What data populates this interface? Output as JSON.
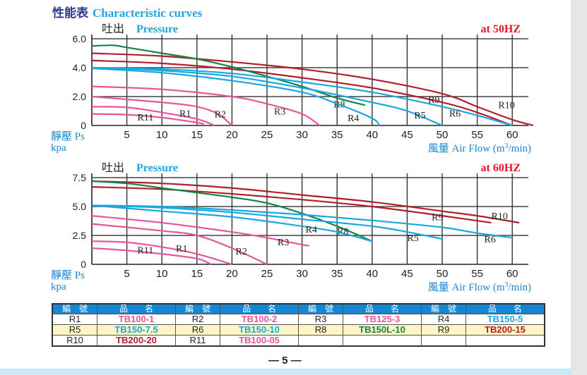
{
  "header": {
    "title_cn": "性能表",
    "title_en": "Characteristic curves"
  },
  "colors": {
    "pink": "#e8559c",
    "blue": "#19a7e0",
    "green": "#12834a",
    "red": "#b21f2a",
    "header_blue": "#1586d2",
    "title_blue": "#1fa6e0",
    "title_navy": "#2b3a8f",
    "hz_red": "#e3182d"
  },
  "chart_data": [
    {
      "type": "line",
      "title": "at 50HZ",
      "ylabel_top": "吐出 Pressure",
      "ylabel_cn": "靜壓 Ps",
      "yunit": "kpa",
      "xlabel": "風量 Air Flow (m3/min)",
      "xlabel_cn": "風量",
      "xlabel_en": "Air Flow (m",
      "xlabel_sup": "3",
      "xlabel_end": "/min)",
      "xlim": [
        0,
        64
      ],
      "ylim": [
        0,
        6.0
      ],
      "x_ticks": [
        "5",
        "10",
        "15",
        "20",
        "25",
        "30",
        "35",
        "40",
        "45",
        "50",
        "55",
        "60"
      ],
      "y_ticks": [
        "0",
        "2.0",
        "4.0",
        "6.0"
      ],
      "grid": true,
      "series": [
        {
          "name": "R10",
          "color": "red",
          "points": [
            [
              0,
              5.0
            ],
            [
              10,
              4.8
            ],
            [
              20,
              4.4
            ],
            [
              30,
              3.9
            ],
            [
              40,
              3.2
            ],
            [
              50,
              2.2
            ],
            [
              55,
              1.3
            ],
            [
              60,
              0.4
            ],
            [
              63,
              0
            ]
          ],
          "label_at": [
            58,
            1.2
          ]
        },
        {
          "name": "R9",
          "color": "red",
          "points": [
            [
              0,
              4.5
            ],
            [
              10,
              4.3
            ],
            [
              20,
              3.9
            ],
            [
              30,
              3.3
            ],
            [
              40,
              2.6
            ],
            [
              50,
              1.6
            ],
            [
              55,
              0.9
            ],
            [
              60,
              0
            ]
          ],
          "label_at": [
            48,
            1.55
          ]
        },
        {
          "name": "R8",
          "color": "green",
          "points": [
            [
              0,
              5.5
            ],
            [
              3,
              5.55
            ],
            [
              5,
              5.4
            ],
            [
              10,
              5.0
            ],
            [
              15,
              4.6
            ],
            [
              20,
              4.05
            ],
            [
              25,
              3.4
            ],
            [
              30,
              2.7
            ],
            [
              35,
              1.9
            ],
            [
              39,
              1.4
            ]
          ],
          "label_at": [
            34.5,
            1.25
          ]
        },
        {
          "name": "R6",
          "color": "blue",
          "points": [
            [
              0,
              4.0
            ],
            [
              10,
              3.9
            ],
            [
              20,
              3.6
            ],
            [
              30,
              3.0
            ],
            [
              40,
              2.3
            ],
            [
              50,
              1.3
            ],
            [
              55,
              0.7
            ],
            [
              60,
              0
            ]
          ],
          "label_at": [
            51,
            0.6
          ]
        },
        {
          "name": "R5",
          "color": "blue",
          "points": [
            [
              0,
              4.0
            ],
            [
              10,
              3.8
            ],
            [
              20,
              3.4
            ],
            [
              30,
              2.6
            ],
            [
              40,
              1.6
            ],
            [
              45,
              1.0
            ],
            [
              50,
              0
            ]
          ],
          "label_at": [
            46,
            0.5
          ]
        },
        {
          "name": "R4",
          "color": "blue",
          "points": [
            [
              0,
              3.95
            ],
            [
              10,
              3.65
            ],
            [
              20,
              3.1
            ],
            [
              30,
              2.3
            ],
            [
              35,
              1.5
            ],
            [
              40,
              0.5
            ],
            [
              41,
              0
            ]
          ],
          "label_at": [
            36.5,
            0.3
          ]
        },
        {
          "name": "R3",
          "color": "pink",
          "points": [
            [
              0,
              2.7
            ],
            [
              10,
              2.5
            ],
            [
              20,
              2.0
            ],
            [
              25,
              1.5
            ],
            [
              30,
              0.8
            ],
            [
              32.5,
              0
            ]
          ],
          "label_at": [
            26,
            0.75
          ]
        },
        {
          "name": "R2",
          "color": "pink",
          "points": [
            [
              0,
              2.0
            ],
            [
              10,
              1.6
            ],
            [
              15,
              1.3
            ],
            [
              18,
              0.8
            ],
            [
              20,
              0
            ]
          ],
          "label_at": [
            17.5,
            0.55
          ]
        },
        {
          "name": "R1",
          "color": "pink",
          "points": [
            [
              0,
              1.3
            ],
            [
              5,
              1.25
            ],
            [
              10,
              0.9
            ],
            [
              15,
              0.45
            ],
            [
              17.5,
              0
            ]
          ],
          "label_at": [
            12.5,
            0.6
          ]
        },
        {
          "name": "R11",
          "color": "pink",
          "points": [
            [
              0,
              0.8
            ],
            [
              5,
              0.75
            ],
            [
              10,
              0.55
            ],
            [
              15,
              0.2
            ],
            [
              16,
              0.1
            ]
          ],
          "label_at": [
            6.5,
            0.35
          ]
        }
      ]
    },
    {
      "type": "line",
      "title": "at 60HZ",
      "ylabel_top": "吐出 Pressure",
      "ylabel_cn": "靜壓 Ps",
      "yunit": "kpa",
      "xlabel": "風量 Air Flow (m3/min)",
      "xlabel_cn": "風量",
      "xlabel_en": "Air Flow (m",
      "xlabel_sup": "3",
      "xlabel_end": "/min)",
      "xlim": [
        0,
        64
      ],
      "ylim": [
        0,
        7.5
      ],
      "x_ticks": [
        "5",
        "10",
        "15",
        "20",
        "25",
        "30",
        "35",
        "40",
        "45",
        "50",
        "55",
        "60"
      ],
      "y_ticks": [
        "0",
        "2.5",
        "5.0",
        "7.5"
      ],
      "grid": true,
      "series": [
        {
          "name": "R10",
          "color": "red",
          "points": [
            [
              0,
              7.2
            ],
            [
              10,
              7.0
            ],
            [
              20,
              6.6
            ],
            [
              30,
              6.0
            ],
            [
              40,
              5.4
            ],
            [
              50,
              4.6
            ],
            [
              55,
              4.2
            ],
            [
              61,
              3.6
            ]
          ],
          "label_at": [
            57,
            3.9
          ]
        },
        {
          "name": "R9",
          "color": "red",
          "points": [
            [
              0,
              6.7
            ],
            [
              10,
              6.5
            ],
            [
              20,
              6.1
            ],
            [
              30,
              5.6
            ],
            [
              40,
              5.0
            ],
            [
              50,
              4.2
            ],
            [
              57,
              3.6
            ]
          ],
          "label_at": [
            48.5,
            3.8
          ]
        },
        {
          "name": "R8",
          "color": "green",
          "points": [
            [
              0,
              7.2
            ],
            [
              5,
              7.0
            ],
            [
              10,
              6.6
            ],
            [
              15,
              6.2
            ],
            [
              20,
              5.8
            ],
            [
              25,
              5.3
            ],
            [
              30,
              4.4
            ],
            [
              35,
              3.3
            ],
            [
              40,
              2.0
            ]
          ],
          "label_at": [
            35,
            2.6
          ]
        },
        {
          "name": "R6",
          "color": "blue",
          "points": [
            [
              0,
              5.1
            ],
            [
              10,
              5.0
            ],
            [
              20,
              4.7
            ],
            [
              30,
              4.3
            ],
            [
              40,
              3.8
            ],
            [
              50,
              3.2
            ],
            [
              55,
              2.7
            ],
            [
              60,
              2.3
            ]
          ],
          "label_at": [
            56,
            1.9
          ]
        },
        {
          "name": "R5",
          "color": "blue",
          "points": [
            [
              0,
              5.1
            ],
            [
              10,
              4.9
            ],
            [
              20,
              4.5
            ],
            [
              30,
              3.9
            ],
            [
              40,
              3.3
            ],
            [
              45,
              2.8
            ],
            [
              50,
              2.2
            ]
          ],
          "label_at": [
            45,
            2.0
          ]
        },
        {
          "name": "R4",
          "color": "blue",
          "points": [
            [
              0,
              5.1
            ],
            [
              10,
              4.6
            ],
            [
              20,
              4.1
            ],
            [
              30,
              3.3
            ],
            [
              35,
              2.8
            ],
            [
              40,
              2.0
            ]
          ],
          "label_at": [
            30.5,
            2.75
          ]
        },
        {
          "name": "R3",
          "color": "pink",
          "points": [
            [
              0,
              4.2
            ],
            [
              10,
              3.6
            ],
            [
              20,
              2.8
            ],
            [
              25,
              2.3
            ],
            [
              30,
              1.7
            ],
            [
              31,
              1.6
            ]
          ],
          "label_at": [
            26.5,
            1.65
          ]
        },
        {
          "name": "R2",
          "color": "pink",
          "points": [
            [
              0,
              3.5
            ],
            [
              10,
              2.9
            ],
            [
              15,
              2.5
            ],
            [
              20,
              1.4
            ],
            [
              25,
              0
            ]
          ],
          "label_at": [
            20.5,
            0.85
          ]
        },
        {
          "name": "R1",
          "color": "pink",
          "points": [
            [
              0,
              2.0
            ],
            [
              5,
              1.9
            ],
            [
              10,
              1.5
            ],
            [
              15,
              0.9
            ],
            [
              20,
              0
            ]
          ],
          "label_at": [
            12,
            1.1
          ]
        },
        {
          "name": "R11",
          "color": "pink",
          "points": [
            [
              0,
              1.4
            ],
            [
              5,
              1.2
            ],
            [
              10,
              0.9
            ],
            [
              15,
              0.5
            ],
            [
              17,
              0
            ]
          ],
          "label_at": [
            6.5,
            0.95
          ]
        }
      ]
    }
  ],
  "legend_table": {
    "headers": [
      "編　號",
      "品　　名",
      "編　號",
      "品　　名",
      "編　號",
      "品　　名",
      "編　號",
      "品　　名"
    ],
    "rows": [
      [
        {
          "code": "R1",
          "name": "TB100-1",
          "color": "pink"
        },
        {
          "code": "R2",
          "name": "TB100-2",
          "color": "pink"
        },
        {
          "code": "R3",
          "name": "TB125-3",
          "color": "pink"
        },
        {
          "code": "R4",
          "name": "TB150-5",
          "color": "blue"
        }
      ],
      [
        {
          "code": "R5",
          "name": "TB150-7.5",
          "color": "blue"
        },
        {
          "code": "R6",
          "name": "TB150-10",
          "color": "blue"
        },
        {
          "code": "R8",
          "name": "TB150L-10",
          "color": "green"
        },
        {
          "code": "R9",
          "name": "TB200-15",
          "color": "red"
        }
      ],
      [
        {
          "code": "R10",
          "name": "TB200-20",
          "color": "red"
        },
        {
          "code": "R11",
          "name": "TB100-05",
          "color": "pink"
        },
        {
          "code": "",
          "name": "",
          "color": "pink"
        },
        {
          "code": "",
          "name": "",
          "color": "pink"
        }
      ]
    ]
  },
  "footer": {
    "page_number": "— 5 —"
  }
}
